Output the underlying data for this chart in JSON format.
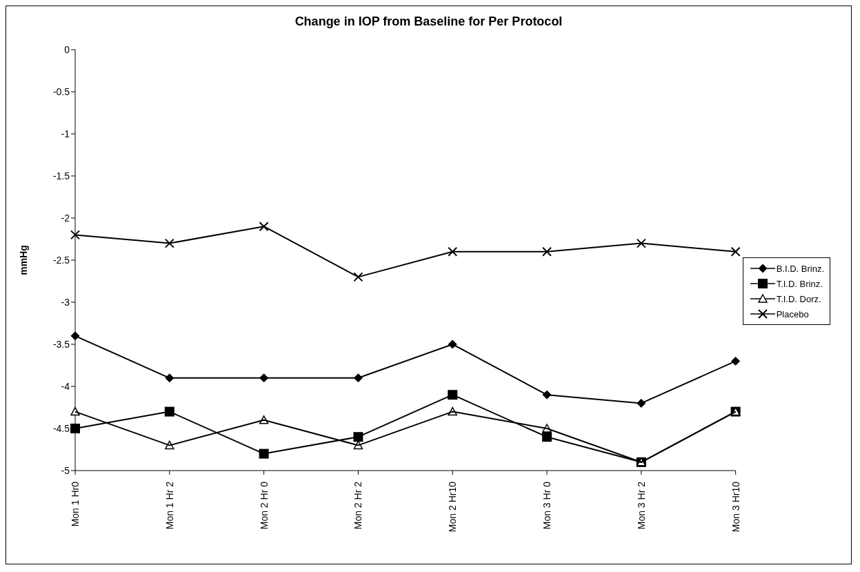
{
  "chart_data": {
    "type": "line",
    "title": "Change in IOP from Baseline for Per Protocol",
    "ylabel": "mmHg",
    "categories": [
      "Mon 1 Hr0",
      "Mon 1 Hr 2",
      "Mon 2 Hr 0",
      "Mon 2 Hr 2",
      "Mon 2 Hr10",
      "Mon 3 Hr 0",
      "Mon 3 Hr 2",
      "Mon 3 Hr10"
    ],
    "series": [
      {
        "name": "B.I.D. Brinz.",
        "color": "#000000",
        "marker": "diamond",
        "values": [
          -3.4,
          -3.9,
          -3.9,
          -3.9,
          -3.5,
          -4.1,
          -4.2,
          -3.7
        ]
      },
      {
        "name": "T.I.D. Brinz.",
        "color": "#000000",
        "marker": "square",
        "values": [
          -4.5,
          -4.3,
          -4.8,
          -4.6,
          -4.1,
          -4.6,
          -4.9,
          -4.3
        ]
      },
      {
        "name": "T.I.D. Dorz.",
        "color": "#000000",
        "marker": "triangle",
        "values": [
          -4.3,
          -4.7,
          -4.4,
          -4.7,
          -4.3,
          -4.5,
          -4.9,
          -4.3
        ]
      },
      {
        "name": "Placebo",
        "color": "#000000",
        "marker": "cross",
        "values": [
          -2.2,
          -2.3,
          -2.1,
          -2.7,
          -2.4,
          -2.4,
          -2.3,
          -2.4
        ]
      }
    ],
    "ylim": [
      -5,
      0
    ],
    "yticks": [
      0,
      -0.5,
      -1,
      -1.5,
      -2,
      -2.5,
      -3,
      -3.5,
      -4,
      -4.5,
      -5
    ],
    "grid": false,
    "legend": "right",
    "line_style": "solid"
  }
}
